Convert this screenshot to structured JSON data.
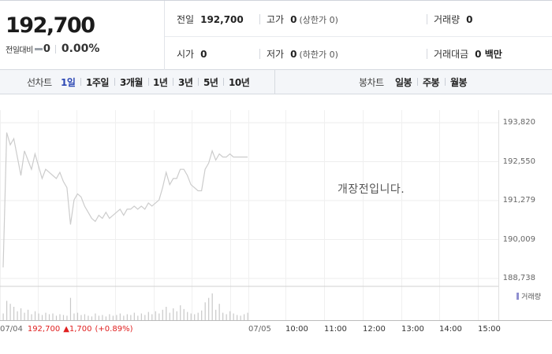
{
  "summary": {
    "price": "192,700",
    "change_label": "전일대비",
    "change_value": "0",
    "change_percent": "0.00%"
  },
  "info": {
    "prev_close": {
      "label": "전일",
      "value": "192,700"
    },
    "high": {
      "label": "고가",
      "value": "0",
      "sub": "(상한가 0)"
    },
    "volume": {
      "label": "거래량",
      "value": "0"
    },
    "open": {
      "label": "시가",
      "value": "0"
    },
    "low": {
      "label": "저가",
      "value": "0",
      "sub": "(하한가 0)"
    },
    "trade_value": {
      "label": "거래대금",
      "value": "0 백만"
    }
  },
  "period_bar": {
    "line_label": "선차트",
    "periods": [
      "1일",
      "1주일",
      "3개월",
      "1년",
      "3년",
      "5년",
      "10년"
    ],
    "active_period": "1일",
    "candle_label": "봉차트",
    "candles": [
      "일봉",
      "주봉",
      "월봉"
    ]
  },
  "chart_data": {
    "type": "line",
    "y_ticks": [
      "193,820",
      "192,550",
      "191,279",
      "190,009",
      "188,738"
    ],
    "ylim": [
      188738,
      193820
    ],
    "notice": "개장전입니다.",
    "volume_legend": "거래량",
    "x_ticks": [
      "07/05",
      "10:00",
      "11:00",
      "12:00",
      "13:00",
      "14:00",
      "15:00"
    ],
    "prev_day": {
      "date": "07/04",
      "close": "192,700",
      "change": "1,700",
      "change_percent": "(+0.89%)"
    },
    "series": [
      {
        "values": [
          189100,
          193500,
          193100,
          193300,
          192700,
          192100,
          192900,
          192600,
          192300,
          192800,
          192400,
          192000,
          192300,
          192200,
          192100,
          192000,
          192200,
          191900,
          191700,
          190500,
          191300,
          191500,
          191400,
          191100,
          190900,
          190700,
          190600,
          190800,
          190700,
          190900,
          190700,
          190800,
          190900,
          191000,
          190800,
          191000,
          191000,
          191100,
          191000,
          191100,
          191000,
          191200,
          191100,
          191200,
          191300,
          191700,
          192200,
          191800,
          192000,
          192000,
          192300,
          192300,
          192100,
          191800,
          191700,
          191600,
          191600,
          192300,
          192500,
          192900,
          192600,
          192800,
          192700,
          192700,
          192800,
          192700,
          192700,
          192700,
          192700,
          192700
        ],
        "line_color": "#cccccc"
      }
    ],
    "volumes": [
      9,
      26,
      22,
      18,
      12,
      16,
      10,
      14,
      8,
      12,
      9,
      7,
      10,
      8,
      9,
      6,
      8,
      7,
      6,
      30,
      9,
      10,
      7,
      8,
      6,
      5,
      9,
      6,
      7,
      5,
      8,
      6,
      7,
      9,
      6,
      8,
      7,
      10,
      6,
      9,
      7,
      11,
      8,
      12,
      9,
      14,
      18,
      10,
      16,
      12,
      20,
      15,
      11,
      9,
      8,
      10,
      13,
      24,
      30,
      36,
      14,
      22,
      10,
      8,
      12,
      9,
      7,
      6,
      8,
      10
    ]
  },
  "colors": {
    "accent_blue": "#2d48b4",
    "up_red": "#e02020",
    "volume_legend": "#8f8fd0"
  }
}
